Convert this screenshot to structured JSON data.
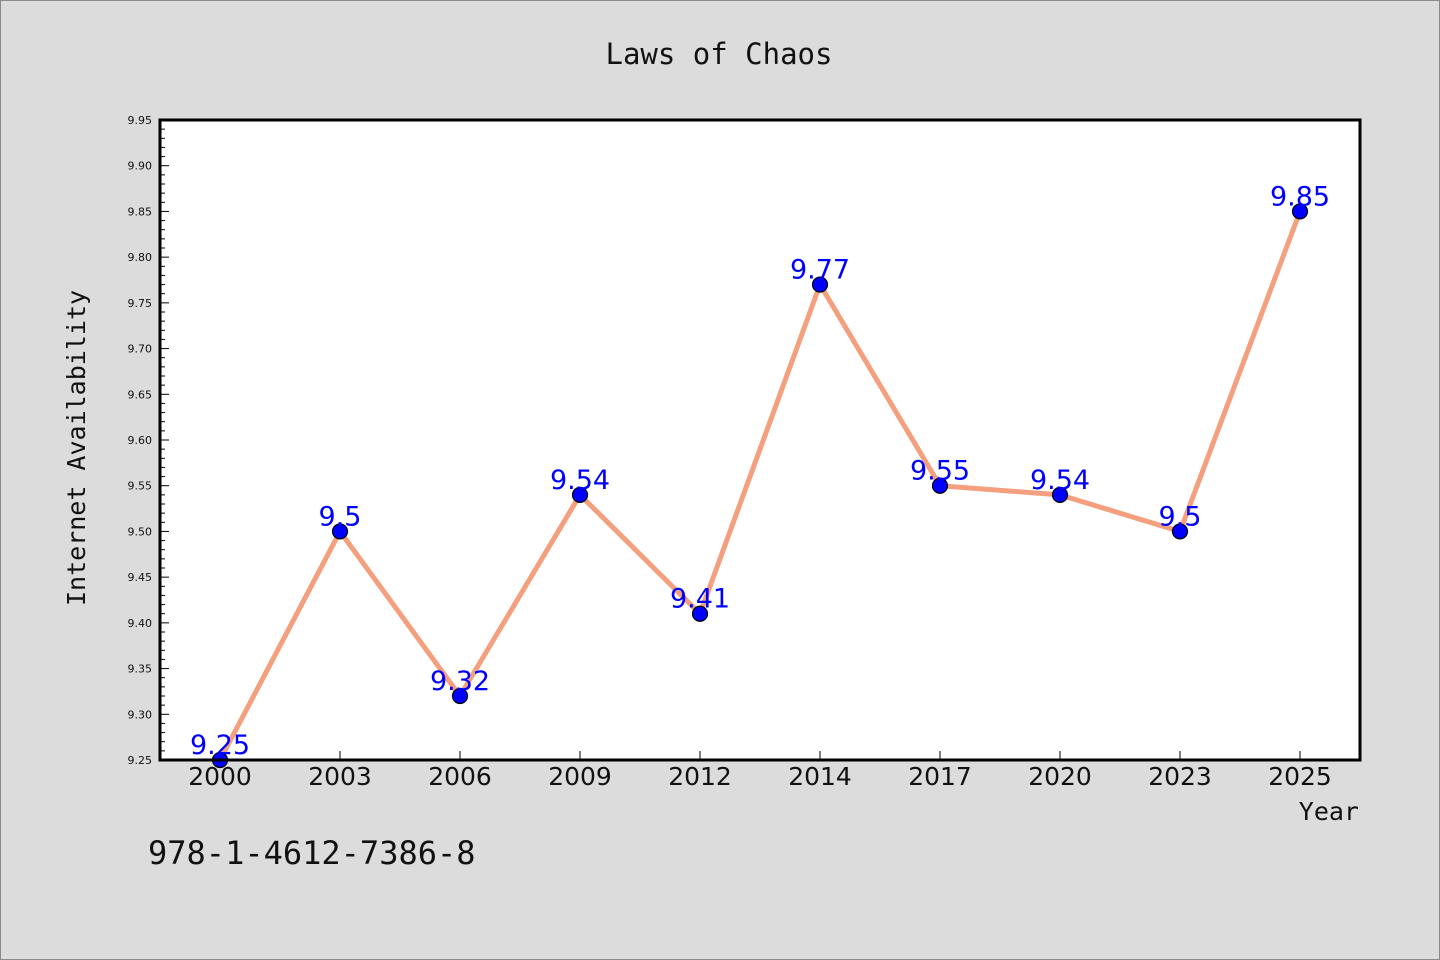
{
  "chart_data": {
    "type": "line",
    "title": "Laws of Chaos",
    "xlabel": "Year",
    "ylabel": "Internet Availability",
    "categories": [
      "2000",
      "2003",
      "2006",
      "2009",
      "2012",
      "2014",
      "2017",
      "2020",
      "2023",
      "2025"
    ],
    "values": [
      9.25,
      9.5,
      9.32,
      9.54,
      9.41,
      9.77,
      9.55,
      9.54,
      9.5,
      9.85
    ],
    "data_labels": [
      "9.25",
      "9.5",
      "9.32",
      "9.54",
      "9.41",
      "9.77",
      "9.55",
      "9.54",
      "9.5",
      "9.85"
    ],
    "ylim": [
      9.25,
      9.95
    ],
    "yticks": [
      "9.25",
      "9.30",
      "9.35",
      "9.40",
      "9.45",
      "9.50",
      "9.55",
      "9.60",
      "9.65",
      "9.70",
      "9.75",
      "9.80",
      "9.85",
      "9.90",
      "9.95"
    ],
    "grid": false,
    "legend": "none",
    "colors": {
      "line": "#f4a07f",
      "marker": "#0000ff",
      "label": "#0000ff",
      "background": "#dcdcdc",
      "plot_bg": "#ffffff"
    }
  },
  "footer": {
    "isbn": "978-1-4612-7386-8"
  }
}
